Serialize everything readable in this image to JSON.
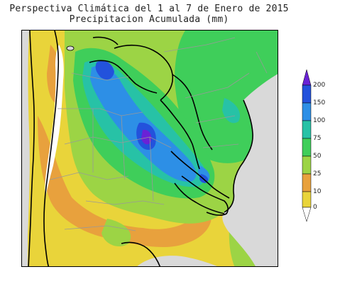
{
  "map": {
    "title": "Perspectiva Climática del 1 al 7 de Enero de 2015",
    "subtitle": "Precipitacion Acumulada (mm)",
    "variable": "accumulated precipitation",
    "unit": "mm"
  },
  "legend": {
    "labels": [
      "0",
      "10",
      "25",
      "50",
      "75",
      "100",
      "150",
      "200"
    ],
    "colors": {
      "band_0_10": "#e9d43a",
      "band_10_25": "#e8a13d",
      "band_25_50": "#9cd445",
      "band_50_75": "#3fce5a",
      "band_75_100": "#27c2a6",
      "band_100_150": "#2d8fe6",
      "band_150_200": "#2352dc",
      "band_200_plus": "#6a22d6"
    }
  },
  "map_features": {
    "ocean_color": "#d9d9d9",
    "highland_color": "#ffffff",
    "border_color": "#000000",
    "province_border_color": "#999999"
  }
}
